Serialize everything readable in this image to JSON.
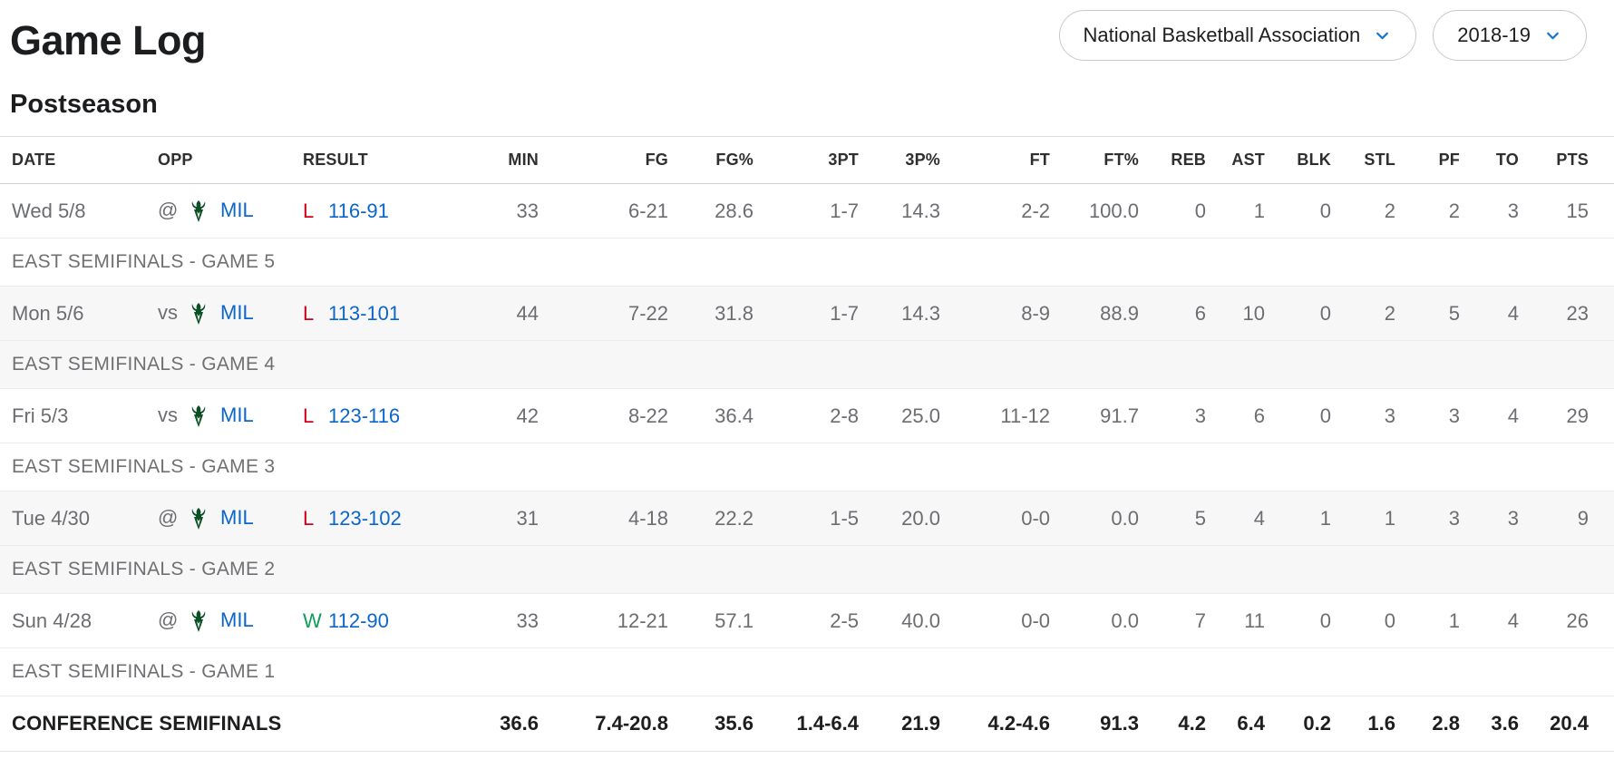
{
  "page": {
    "title": "Game Log",
    "section": "Postseason"
  },
  "filters": {
    "league": "National Basketball Association",
    "season": "2018-19"
  },
  "icons": {
    "dropdown_chevron": "chevron-down",
    "team_logo": "milwaukee-bucks-logo"
  },
  "colors": {
    "link_blue": "#0b66cc",
    "loss_red": "#d0021b",
    "win_green": "#0f9d58",
    "chevron_blue": "#1673cf",
    "row_stripe": "#f7f7f8",
    "logo_green": "#0b4f26",
    "text_gray": "#6c6d70",
    "text_dark": "#1d1e1f"
  },
  "table": {
    "headers": [
      "DATE",
      "OPP",
      "RESULT",
      "MIN",
      "FG",
      "FG%",
      "3PT",
      "3P%",
      "FT",
      "FT%",
      "REB",
      "AST",
      "BLK",
      "STL",
      "PF",
      "TO",
      "PTS"
    ],
    "games": [
      {
        "date": "Wed 5/8",
        "at_vs": "@",
        "opp": "MIL",
        "result": "L",
        "score": "116-91",
        "stats": [
          "33",
          "6-21",
          "28.6",
          "1-7",
          "14.3",
          "2-2",
          "100.0",
          "0",
          "1",
          "0",
          "2",
          "2",
          "3",
          "15"
        ],
        "note": "EAST SEMIFINALS - GAME 5"
      },
      {
        "date": "Mon 5/6",
        "at_vs": "vs",
        "opp": "MIL",
        "result": "L",
        "score": "113-101",
        "stats": [
          "44",
          "7-22",
          "31.8",
          "1-7",
          "14.3",
          "8-9",
          "88.9",
          "6",
          "10",
          "0",
          "2",
          "5",
          "4",
          "23"
        ],
        "note": "EAST SEMIFINALS - GAME 4"
      },
      {
        "date": "Fri 5/3",
        "at_vs": "vs",
        "opp": "MIL",
        "result": "L",
        "score": "123-116",
        "stats": [
          "42",
          "8-22",
          "36.4",
          "2-8",
          "25.0",
          "11-12",
          "91.7",
          "3",
          "6",
          "0",
          "3",
          "3",
          "4",
          "29"
        ],
        "note": "EAST SEMIFINALS - GAME 3"
      },
      {
        "date": "Tue 4/30",
        "at_vs": "@",
        "opp": "MIL",
        "result": "L",
        "score": "123-102",
        "stats": [
          "31",
          "4-18",
          "22.2",
          "1-5",
          "20.0",
          "0-0",
          "0.0",
          "5",
          "4",
          "1",
          "1",
          "3",
          "3",
          "9"
        ],
        "note": "EAST SEMIFINALS - GAME 2"
      },
      {
        "date": "Sun 4/28",
        "at_vs": "@",
        "opp": "MIL",
        "result": "W",
        "score": "112-90",
        "stats": [
          "33",
          "12-21",
          "57.1",
          "2-5",
          "40.0",
          "0-0",
          "0.0",
          "7",
          "11",
          "0",
          "0",
          "1",
          "4",
          "26"
        ],
        "note": "EAST SEMIFINALS - GAME 1"
      }
    ],
    "summary": {
      "label": "CONFERENCE SEMIFINALS",
      "stats": [
        "36.6",
        "7.4-20.8",
        "35.6",
        "1.4-6.4",
        "21.9",
        "4.2-4.6",
        "91.3",
        "4.2",
        "6.4",
        "0.2",
        "1.6",
        "2.8",
        "3.6",
        "20.4"
      ]
    }
  }
}
